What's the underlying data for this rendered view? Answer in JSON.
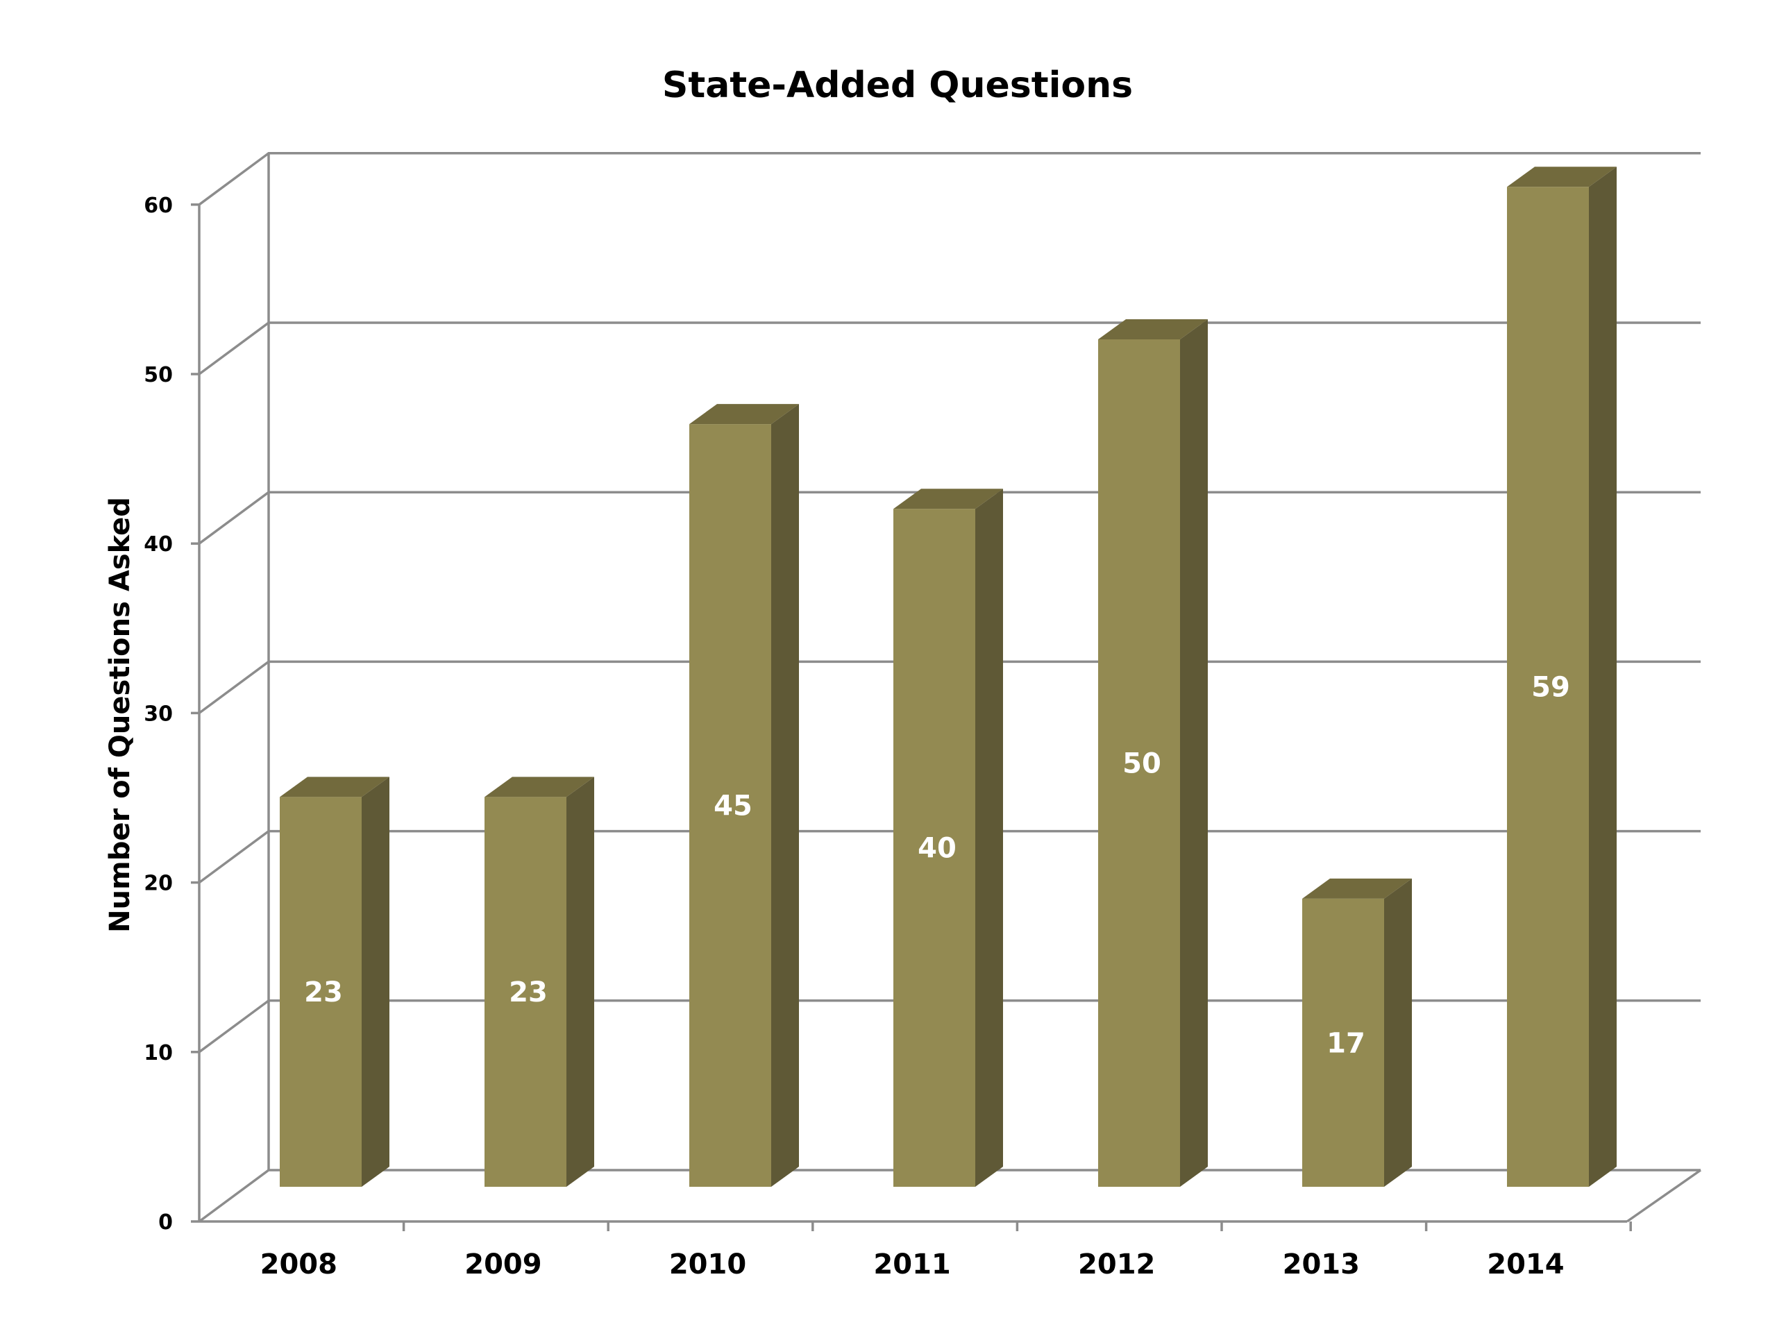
{
  "chart_data": {
    "type": "bar",
    "title": "State-Added Questions",
    "xlabel": "",
    "ylabel": "Number of Questions Asked",
    "categories": [
      "2008",
      "2009",
      "2010",
      "2011",
      "2012",
      "2013",
      "2014"
    ],
    "values": [
      23,
      23,
      45,
      40,
      50,
      17,
      59
    ],
    "data_labels": [
      "23",
      "23",
      "45",
      "40",
      "50",
      "17",
      "59"
    ],
    "y_ticks": [
      "0",
      "10",
      "20",
      "30",
      "40",
      "50",
      "60"
    ],
    "ylim": [
      0,
      60
    ],
    "grid": true,
    "legend": false,
    "style": "3d-column",
    "colors": {
      "bar_front": "#938a52",
      "bar_side": "#5f5936",
      "bar_top": "#726a3d",
      "gridline": "#8c8c8c",
      "data_label": "#ffffff"
    }
  }
}
